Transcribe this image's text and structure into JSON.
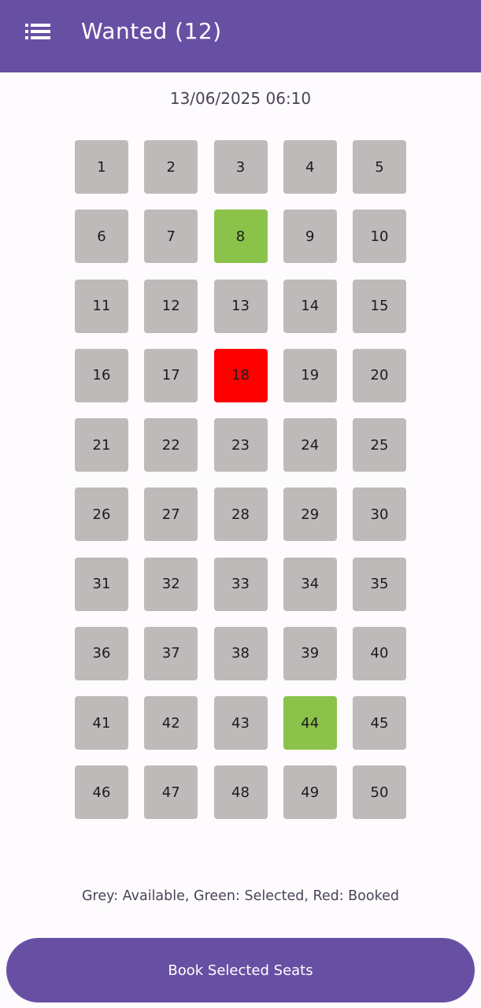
{
  "app_bar": {
    "title": "Wanted (12)",
    "menu_icon": "list-icon",
    "color": "#6750a4"
  },
  "timestamp": "13/06/2025 06:10",
  "colors": {
    "available": "#bdbab9",
    "selected": "#8bc34a",
    "booked": "#ff0000"
  },
  "seats": [
    {
      "label": "1",
      "status": "available"
    },
    {
      "label": "2",
      "status": "available"
    },
    {
      "label": "3",
      "status": "available"
    },
    {
      "label": "4",
      "status": "available"
    },
    {
      "label": "5",
      "status": "available"
    },
    {
      "label": "6",
      "status": "available"
    },
    {
      "label": "7",
      "status": "available"
    },
    {
      "label": "8",
      "status": "selected"
    },
    {
      "label": "9",
      "status": "available"
    },
    {
      "label": "10",
      "status": "available"
    },
    {
      "label": "11",
      "status": "available"
    },
    {
      "label": "12",
      "status": "available"
    },
    {
      "label": "13",
      "status": "available"
    },
    {
      "label": "14",
      "status": "available"
    },
    {
      "label": "15",
      "status": "available"
    },
    {
      "label": "16",
      "status": "available"
    },
    {
      "label": "17",
      "status": "available"
    },
    {
      "label": "18",
      "status": "booked"
    },
    {
      "label": "19",
      "status": "available"
    },
    {
      "label": "20",
      "status": "available"
    },
    {
      "label": "21",
      "status": "available"
    },
    {
      "label": "22",
      "status": "available"
    },
    {
      "label": "23",
      "status": "available"
    },
    {
      "label": "24",
      "status": "available"
    },
    {
      "label": "25",
      "status": "available"
    },
    {
      "label": "26",
      "status": "available"
    },
    {
      "label": "27",
      "status": "available"
    },
    {
      "label": "28",
      "status": "available"
    },
    {
      "label": "29",
      "status": "available"
    },
    {
      "label": "30",
      "status": "available"
    },
    {
      "label": "31",
      "status": "available"
    },
    {
      "label": "32",
      "status": "available"
    },
    {
      "label": "33",
      "status": "available"
    },
    {
      "label": "34",
      "status": "available"
    },
    {
      "label": "35",
      "status": "available"
    },
    {
      "label": "36",
      "status": "available"
    },
    {
      "label": "37",
      "status": "available"
    },
    {
      "label": "38",
      "status": "available"
    },
    {
      "label": "39",
      "status": "available"
    },
    {
      "label": "40",
      "status": "available"
    },
    {
      "label": "41",
      "status": "available"
    },
    {
      "label": "42",
      "status": "available"
    },
    {
      "label": "43",
      "status": "available"
    },
    {
      "label": "44",
      "status": "selected"
    },
    {
      "label": "45",
      "status": "available"
    },
    {
      "label": "46",
      "status": "available"
    },
    {
      "label": "47",
      "status": "available"
    },
    {
      "label": "48",
      "status": "available"
    },
    {
      "label": "49",
      "status": "available"
    },
    {
      "label": "50",
      "status": "available"
    }
  ],
  "legend": "Grey: Available, Green: Selected, Red: Booked",
  "book_button_label": "Book Selected Seats"
}
